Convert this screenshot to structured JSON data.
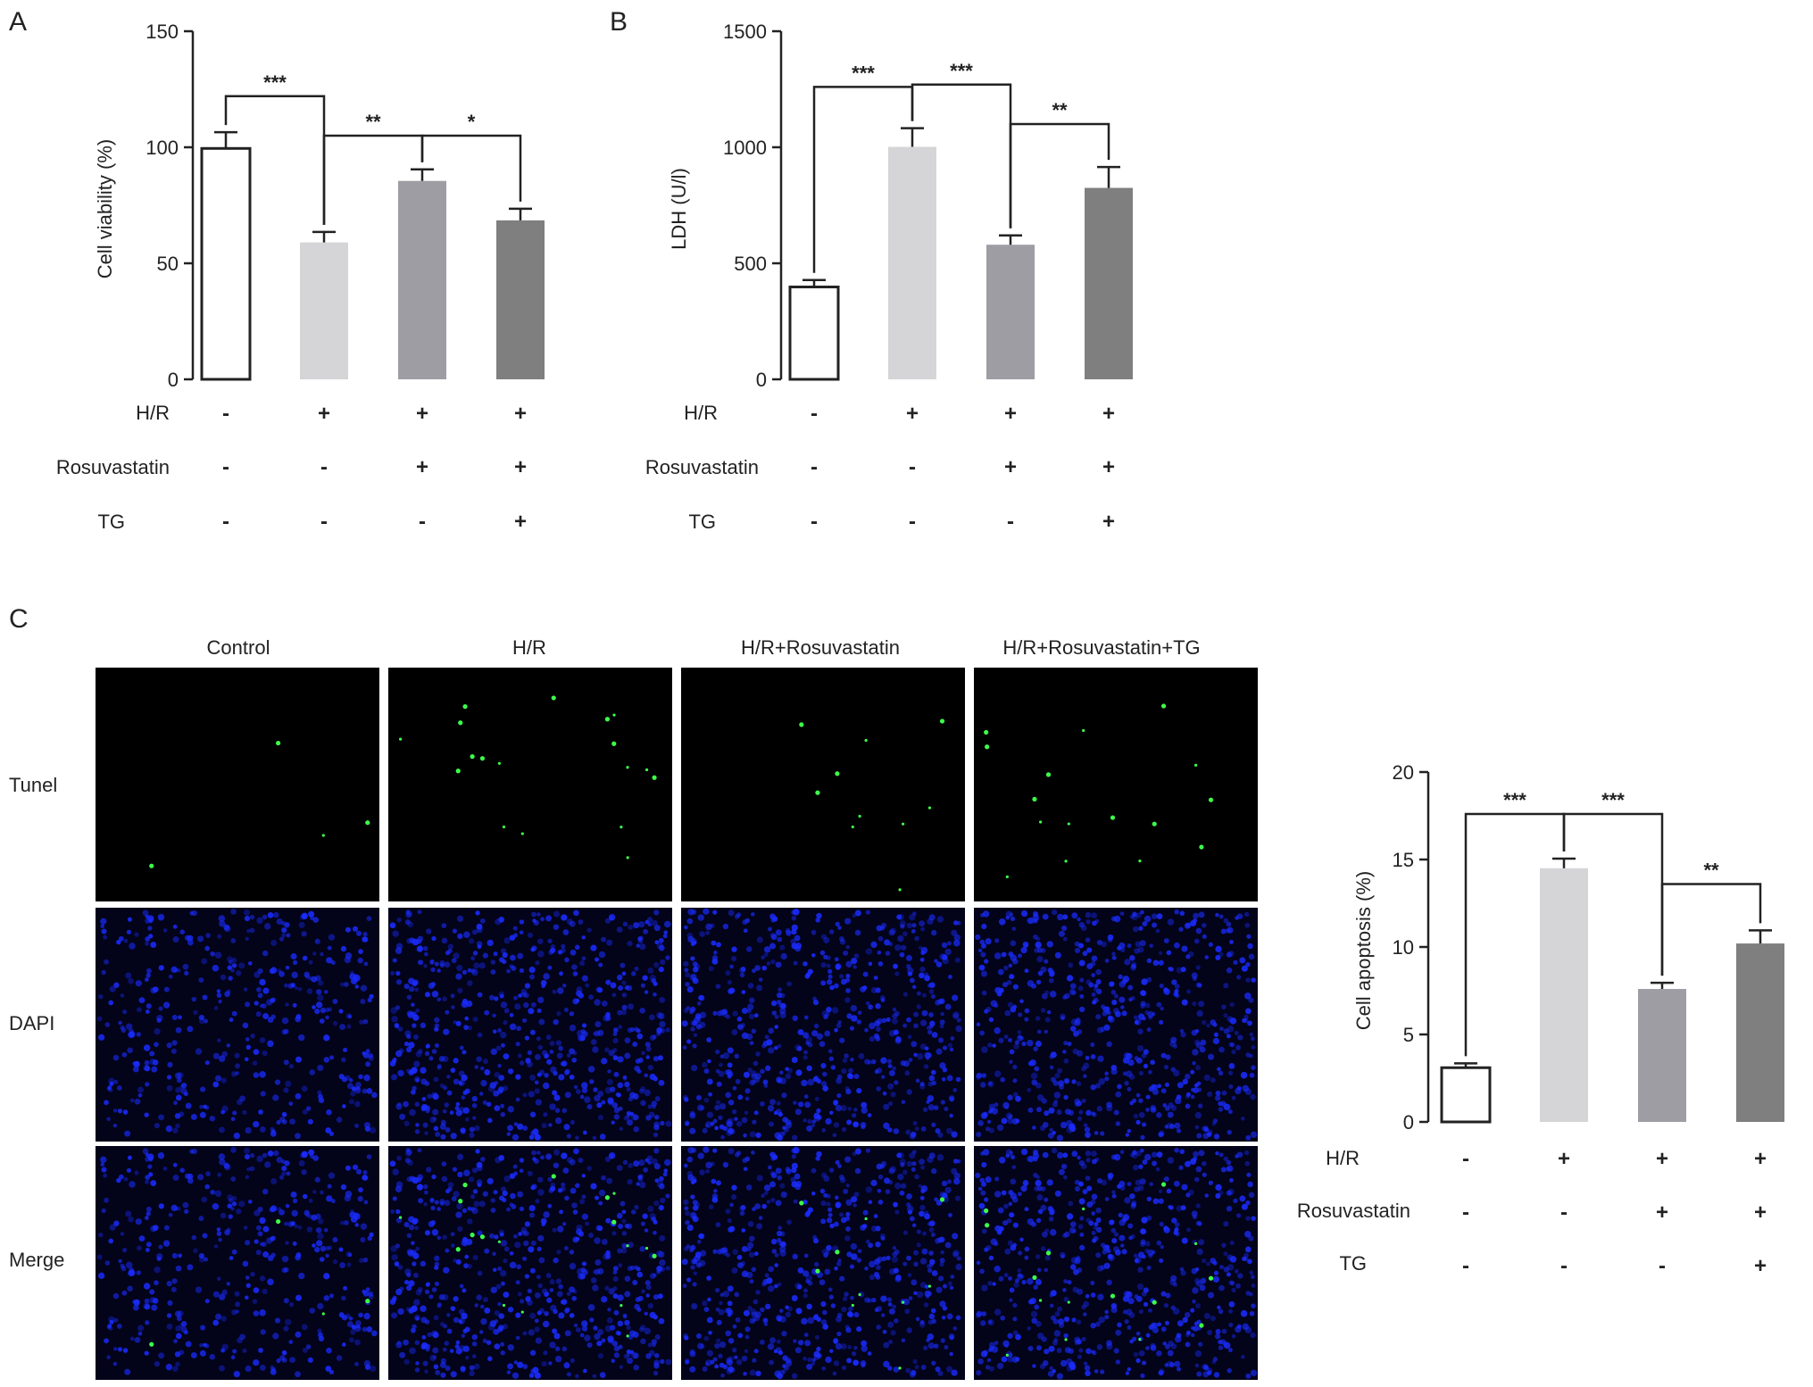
{
  "panels": {
    "A": "A",
    "B": "B",
    "C": "C"
  },
  "condition_labels": [
    "H/R",
    "Rosuvastatin",
    "TG"
  ],
  "conditions": [
    [
      "-",
      "+",
      "+",
      "+"
    ],
    [
      "-",
      "-",
      "+",
      "+"
    ],
    [
      "-",
      "-",
      "-",
      "+"
    ]
  ],
  "colors": {
    "bar_fills": [
      "#ffffff",
      "#d5d5d7",
      "#9d9da3",
      "#7f7f7f"
    ],
    "axis": "#222222"
  },
  "chart_data": [
    {
      "id": "A",
      "type": "bar",
      "categories": [
        "1",
        "2",
        "3",
        "4"
      ],
      "values": [
        99.5,
        59,
        85.5,
        68.5
      ],
      "errors": [
        7,
        4.5,
        5,
        5
      ],
      "ylabel": "Cell viability (%)",
      "ylim": [
        0,
        150
      ],
      "yticks": [
        0,
        50,
        100,
        150
      ],
      "significance": [
        {
          "from": 0,
          "to": 1,
          "label": "***",
          "level": 122
        },
        {
          "from": 1,
          "to": 2,
          "label": "**",
          "level": 105
        },
        {
          "from": 2,
          "to": 3,
          "label": "*",
          "level": 105
        }
      ]
    },
    {
      "id": "B",
      "type": "bar",
      "categories": [
        "1",
        "2",
        "3",
        "4"
      ],
      "values": [
        398,
        1002,
        580,
        825
      ],
      "errors": [
        30,
        80,
        40,
        90
      ],
      "ylabel": "LDH (U/l)",
      "ylim": [
        0,
        1500
      ],
      "yticks": [
        0,
        500,
        1000,
        1500
      ],
      "significance": [
        {
          "from": 0,
          "to": 1,
          "label": "***",
          "level": 1260
        },
        {
          "from": 1,
          "to": 2,
          "label": "***",
          "level": 1270
        },
        {
          "from": 2,
          "to": 3,
          "label": "**",
          "level": 1100
        }
      ]
    },
    {
      "id": "C",
      "type": "bar",
      "categories": [
        "1",
        "2",
        "3",
        "4"
      ],
      "values": [
        3.1,
        14.5,
        7.6,
        10.2
      ],
      "errors": [
        0.25,
        0.55,
        0.35,
        0.75
      ],
      "ylabel": "Cell apoptosis (%)",
      "ylim": [
        0,
        20
      ],
      "yticks": [
        0,
        5,
        10,
        15,
        20
      ],
      "significance": [
        {
          "from": 0,
          "to": 1,
          "label": "***",
          "level": 17.6
        },
        {
          "from": 1,
          "to": 2,
          "label": "***",
          "level": 17.6
        },
        {
          "from": 2,
          "to": 3,
          "label": "**",
          "level": 13.6
        }
      ]
    }
  ],
  "micrographs": {
    "columns": [
      "Control",
      "H/R",
      "H/R+Rosuvastatin",
      "H/R+Rosuvastatin+TG"
    ],
    "rows": [
      "Tunel",
      "DAPI",
      "Merge"
    ],
    "tunel_positive_counts": [
      4,
      18,
      10,
      16
    ]
  }
}
